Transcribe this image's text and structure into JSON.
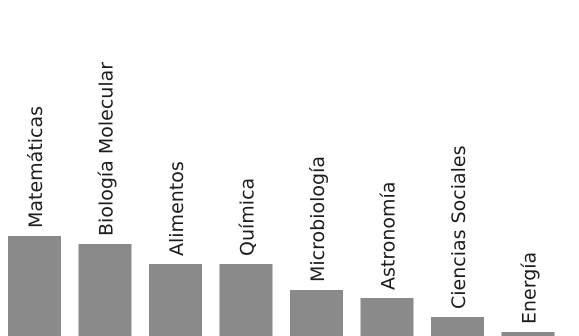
{
  "chart_data": {
    "type": "bar",
    "categories": [
      "Matemáticas",
      "Biología Molecular",
      "Alimentos",
      "Química",
      "Microbiología",
      "Astronomía",
      "Ciencias Sociales",
      "Energía"
    ],
    "values": [
      100,
      92,
      72,
      72,
      46,
      38,
      19,
      4
    ],
    "bar_color": "#8a8a8a",
    "title": "",
    "xlabel": "",
    "ylabel": "",
    "ylim": [
      0,
      100
    ],
    "grid": false,
    "legend": "none"
  }
}
